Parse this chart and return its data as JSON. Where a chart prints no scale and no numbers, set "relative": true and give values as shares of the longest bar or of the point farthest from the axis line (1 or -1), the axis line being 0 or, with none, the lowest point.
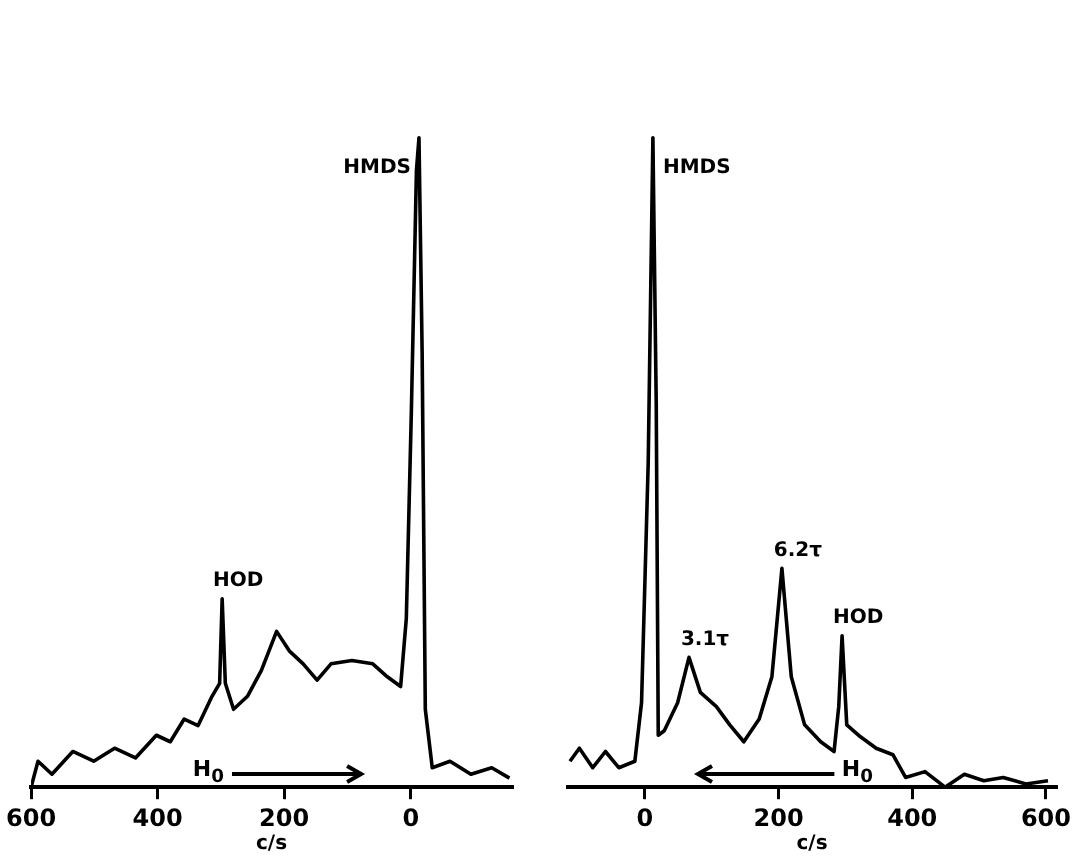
{
  "chart_data": [
    {
      "type": "line",
      "relative": true,
      "xlabel": "c/s",
      "xlim": [
        600,
        -160
      ],
      "xticks": [
        600,
        400,
        200,
        0
      ],
      "annotations": [
        {
          "text": "HMDS",
          "x": -13,
          "y": 1
        },
        {
          "text": "HOD",
          "x": 298,
          "y": 0.29
        },
        "H$_{0}$"
      ],
      "series": [
        {
          "color": "#000000",
          "x": [
            600,
            589,
            567,
            534,
            501,
            468,
            435,
            402,
            380,
            358,
            336,
            314,
            302,
            298,
            293,
            280,
            258,
            236,
            212,
            192,
            170,
            148,
            126,
            93,
            60,
            37,
            16,
            7,
            -1,
            -9,
            -13,
            -18,
            -23,
            -34,
            -62,
            -95,
            -128,
            -156
          ],
          "values": [
            0,
            0.04,
            0.02,
            0.055,
            0.04,
            0.06,
            0.045,
            0.08,
            0.07,
            0.105,
            0.095,
            0.14,
            0.16,
            0.29,
            0.16,
            0.12,
            0.14,
            0.18,
            0.24,
            0.21,
            0.19,
            0.165,
            0.19,
            0.195,
            0.19,
            0.17,
            0.155,
            0.26,
            0.58,
            0.95,
            1,
            0.67,
            0.12,
            0.03,
            0.04,
            0.02,
            0.03,
            0.014
          ]
        }
      ]
    },
    {
      "type": "line",
      "relative": true,
      "xlabel": "c/s",
      "xlim": [
        -115,
        615
      ],
      "xticks": [
        0,
        200,
        400,
        600
      ],
      "annotations": [
        {
          "text": "HMDS",
          "x": 12,
          "y": 1
        },
        {
          "text": "3.1τ",
          "x": 66,
          "y": 0.2
        },
        {
          "text": "6.2τ",
          "x": 205,
          "y": 0.337
        },
        {
          "text": "HOD",
          "x": 295,
          "y": 0.233
        },
        "H$_{0}$"
      ],
      "series": [
        {
          "color": "#000000",
          "x": [
            -112,
            -98,
            -78,
            -59,
            -39,
            -15,
            -5,
            5,
            12,
            17,
            20,
            29,
            49,
            66,
            83,
            107,
            127,
            148,
            171,
            190,
            205,
            219,
            239,
            263,
            283,
            290,
            295,
            302,
            322,
            346,
            371,
            390,
            419,
            449,
            478,
            507,
            536,
            570,
            603
          ],
          "values": [
            0.04,
            0.06,
            0.03,
            0.055,
            0.03,
            0.04,
            0.13,
            0.5,
            1,
            0.59,
            0.08,
            0.087,
            0.13,
            0.2,
            0.146,
            0.124,
            0.096,
            0.07,
            0.105,
            0.17,
            0.337,
            0.17,
            0.096,
            0.07,
            0.055,
            0.124,
            0.233,
            0.096,
            0.078,
            0.06,
            0.05,
            0.015,
            0.024,
            0,
            0.02,
            0.01,
            0.015,
            0.005,
            0.01
          ]
        }
      ]
    }
  ]
}
